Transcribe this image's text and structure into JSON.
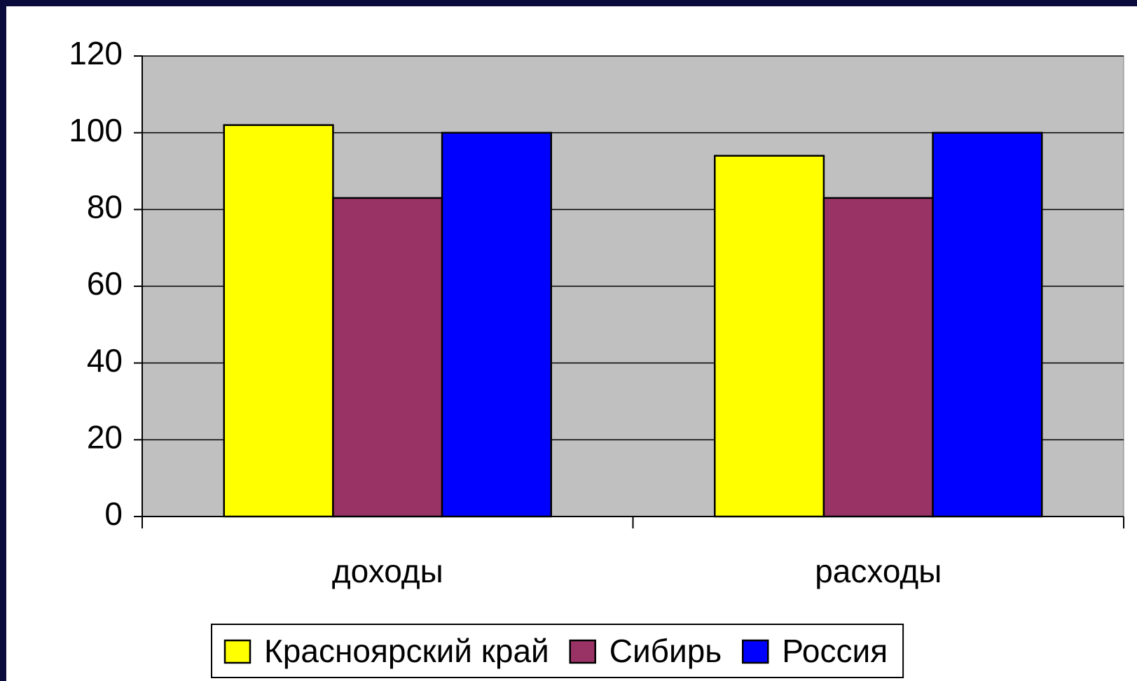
{
  "chart_data": {
    "type": "bar",
    "categories": [
      "доходы",
      "расходы"
    ],
    "series": [
      {
        "name": "Красноярский край",
        "color": "#ffff00",
        "values": [
          102,
          94
        ]
      },
      {
        "name": "Сибирь",
        "color": "#993366",
        "values": [
          83,
          83
        ]
      },
      {
        "name": "Россия",
        "color": "#0000ff",
        "values": [
          100,
          100
        ]
      }
    ],
    "ylim": [
      0,
      120
    ],
    "yticks": [
      0,
      20,
      40,
      60,
      80,
      100,
      120
    ],
    "grid": true,
    "plot_background": "#c0c0c0",
    "legend": "bottom"
  }
}
